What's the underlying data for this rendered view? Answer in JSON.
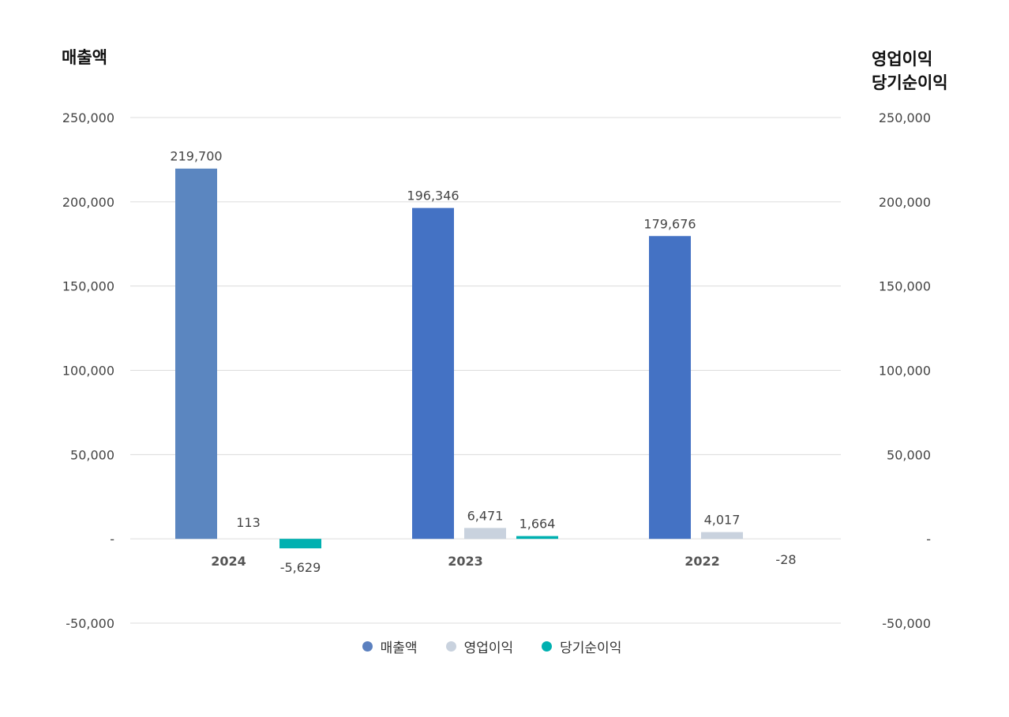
{
  "axis_titles": {
    "left": "매출액",
    "right_line1": "영업이익",
    "right_line2": "당기순이익"
  },
  "chart_data": {
    "type": "bar",
    "categories": [
      "2024",
      "2023",
      "2022"
    ],
    "ylim": [
      -50000,
      250000
    ],
    "yticks": [
      -50000,
      0,
      50000,
      100000,
      150000,
      200000,
      250000
    ],
    "ytick_labels": [
      "-50,000",
      "-",
      "50,000",
      "100,000",
      "150,000",
      "200,000",
      "250,000"
    ],
    "grid": true,
    "legend_position": "bottom",
    "series": [
      {
        "name": "매출액",
        "color": "#4472C4",
        "values": [
          219700,
          196346,
          179676
        ],
        "labels": [
          "219,700",
          "196,346",
          "179,676"
        ]
      },
      {
        "name": "영업이익",
        "color": "#C9D2DE",
        "values": [
          113,
          6471,
          4017
        ],
        "labels": [
          "113",
          "6,471",
          "4,017"
        ]
      },
      {
        "name": "당기순이익",
        "color": "#00B0B0",
        "values": [
          -5629,
          1664,
          -28
        ],
        "labels": [
          "-5,629",
          "1,664",
          "-28"
        ]
      }
    ],
    "highlight_color": "#5B86C0"
  },
  "legend": {
    "items": [
      {
        "label": "매출액",
        "color": "#5B80BF"
      },
      {
        "label": "영업이익",
        "color": "#C9D2DE"
      },
      {
        "label": "당기순이익",
        "color": "#00B0B0"
      }
    ]
  }
}
